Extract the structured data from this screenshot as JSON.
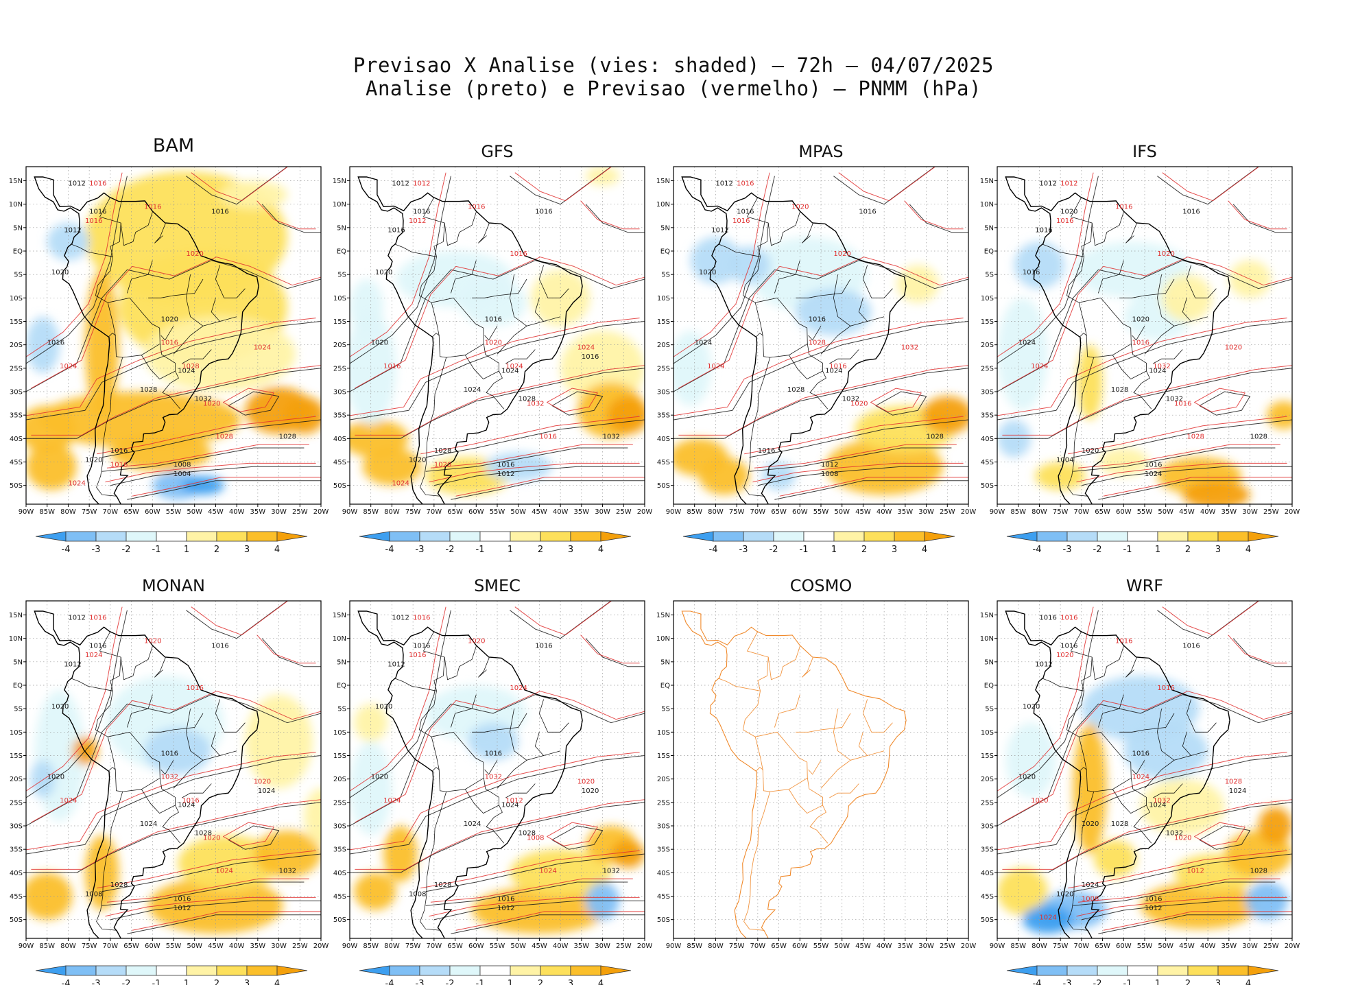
{
  "title": {
    "line1": "Previsao X Analise (vies: shaded) – 72h – 04/07/2025",
    "line2": "Analise (preto) e Previsao (vermelho) – PNMM (hPa)"
  },
  "lat_labels": [
    "15N",
    "10N",
    "5N",
    "EQ",
    "5S",
    "10S",
    "15S",
    "20S",
    "25S",
    "30S",
    "35S",
    "40S",
    "45S",
    "50S"
  ],
  "lon_labels": [
    "90W",
    "85W",
    "80W",
    "75W",
    "70W",
    "65W",
    "60W",
    "55W",
    "50W",
    "45W",
    "40W",
    "35W",
    "30W",
    "25W",
    "20W"
  ],
  "colorbar": {
    "labels": [
      "-4",
      "-3",
      "-2",
      "-1",
      "1",
      "2",
      "3",
      "4"
    ],
    "colors": [
      "#3d9ff0",
      "#7fbff5",
      "#b5dcf8",
      "#dff7fa",
      "#ffffff",
      "#fff3a6",
      "#fde05b",
      "#fbbf2a",
      "#f4a00b"
    ]
  },
  "colors": {
    "analysis": "#1a1a1a",
    "forecast": "#e03030",
    "coast_cosmo": "#f08a2c",
    "coast": "#000000",
    "grid": "#9a9a9a"
  },
  "panels": [
    {
      "name": "BAM",
      "has_data": true,
      "bias": "warm",
      "labels_black": [
        "1012",
        "1016",
        "1012",
        "1016",
        "1020",
        "1020",
        "1016",
        "1024",
        "1028",
        "1032",
        "1028",
        "1016",
        "1008",
        "1004",
        "1020"
      ],
      "labels_red": [
        "1016",
        "1016",
        "1016",
        "1020",
        "1024",
        "1016",
        "1024",
        "1028",
        "1020",
        "1028",
        "1016",
        "1024"
      ]
    },
    {
      "name": "GFS",
      "has_data": true,
      "bias": "mixed",
      "labels_black": [
        "1012",
        "1016",
        "1016",
        "1016",
        "1020",
        "1016",
        "1020",
        "1024",
        "1024",
        "1028",
        "1032",
        "1028",
        "1016",
        "1012",
        "1020",
        "1016"
      ],
      "labels_red": [
        "1012",
        "1016",
        "1012",
        "1016",
        "1016",
        "1020",
        "1024",
        "1024",
        "1032",
        "1016",
        "1020",
        "1024"
      ]
    },
    {
      "name": "MPAS",
      "has_data": true,
      "bias": "mixed",
      "labels_black": [
        "1012",
        "1016",
        "1012",
        "1016",
        "1020",
        "1016",
        "1024",
        "1024",
        "1028",
        "1032",
        "1028",
        "1016",
        "1012",
        "1008"
      ],
      "labels_red": [
        "1016",
        "1020",
        "1016",
        "1020",
        "1024",
        "1028",
        "1032",
        "1016",
        "1020"
      ]
    },
    {
      "name": "IFS",
      "has_data": true,
      "bias": "mixed",
      "labels_black": [
        "1012",
        "1020",
        "1016",
        "1016",
        "1016",
        "1020",
        "1024",
        "1024",
        "1028",
        "1032",
        "1028",
        "1020",
        "1016",
        "1024",
        "1004"
      ],
      "labels_red": [
        "1012",
        "1016",
        "1016",
        "1020",
        "1024",
        "1016",
        "1020",
        "1032",
        "1016",
        "1028"
      ]
    },
    {
      "name": "MONAN",
      "has_data": true,
      "bias": "mixed",
      "labels_black": [
        "1012",
        "1016",
        "1012",
        "1016",
        "1020",
        "1016",
        "1020",
        "1024",
        "1024",
        "1028",
        "1032",
        "1028",
        "1016",
        "1012",
        "1008",
        "1024"
      ],
      "labels_red": [
        "1016",
        "1020",
        "1024",
        "1016",
        "1024",
        "1032",
        "1020",
        "1016",
        "1020",
        "1024"
      ]
    },
    {
      "name": "SMEC",
      "has_data": true,
      "bias": "mixed",
      "labels_black": [
        "1012",
        "1016",
        "1012",
        "1016",
        "1020",
        "1016",
        "1020",
        "1024",
        "1024",
        "1028",
        "1032",
        "1028",
        "1016",
        "1012",
        "1008",
        "1020"
      ],
      "labels_red": [
        "1016",
        "1020",
        "1016",
        "1024",
        "1024",
        "1032",
        "1020",
        "1012",
        "1008",
        "1024"
      ]
    },
    {
      "name": "COSMO",
      "has_data": false,
      "bias": "none",
      "labels_black": [],
      "labels_red": []
    },
    {
      "name": "WRF",
      "has_data": true,
      "bias": "mixed",
      "labels_black": [
        "1016",
        "1016",
        "1012",
        "1016",
        "1020",
        "1016",
        "1020",
        "1024",
        "1028",
        "1032",
        "1028",
        "1024",
        "1016",
        "1012",
        "1020",
        "1024",
        "1020"
      ],
      "labels_red": [
        "1016",
        "1016",
        "1020",
        "1016",
        "1020",
        "1024",
        "1028",
        "1032",
        "1020",
        "1012",
        "1008",
        "1024"
      ]
    }
  ]
}
